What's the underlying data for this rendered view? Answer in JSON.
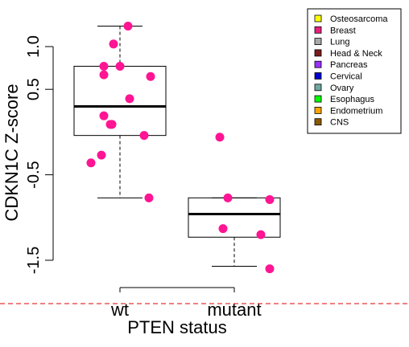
{
  "chart_data": {
    "type": "box",
    "xlabel": "PTEN status",
    "ylabel": "CDKN1C Z-score",
    "ylim": [
      -1.55,
      1.15
    ],
    "yticks": [
      -1.5,
      -0.5,
      0.5,
      1.0
    ],
    "ytick_labels": [
      "-1.5",
      "-0.5",
      "0.5",
      "1.0"
    ],
    "categories": [
      "wt",
      "mutant"
    ],
    "groups": [
      {
        "category": "wt",
        "whisker_low": -0.77,
        "q1": -0.04,
        "median": 0.3,
        "q3": 0.77,
        "whisker_high": 1.24,
        "points": [
          1.24,
          1.03,
          0.77,
          0.77,
          0.67,
          0.65,
          0.39,
          0.19,
          0.09,
          0.09,
          -0.04,
          -0.27,
          -0.36,
          -0.77
        ]
      },
      {
        "category": "mutant",
        "whisker_low": -1.57,
        "q1": -1.23,
        "median": -0.96,
        "q3": -0.77,
        "whisker_high": -0.77,
        "points": [
          -0.06,
          -0.77,
          -0.79,
          -1.13,
          -1.2,
          -1.6
        ]
      }
    ],
    "point_color": "#FF1493",
    "legend": {
      "position": "top-right",
      "entries": [
        {
          "label": "Osteosarcoma",
          "color": "#FFFF00"
        },
        {
          "label": "Breast",
          "color": "#E8207F"
        },
        {
          "label": "Lung",
          "color": "#A9A9A9"
        },
        {
          "label": "Head & Neck",
          "color": "#7B1C1C"
        },
        {
          "label": "Pancreas",
          "color": "#9B30FF"
        },
        {
          "label": "Cervical",
          "color": "#0000CD"
        },
        {
          "label": "Ovary",
          "color": "#6FA8A0"
        },
        {
          "label": "Esophagus",
          "color": "#00FF00"
        },
        {
          "label": "Endometrium",
          "color": "#FFA500"
        },
        {
          "label": "CNS",
          "color": "#8B5A00"
        }
      ]
    },
    "reference_line": {
      "color": "#E00000",
      "style": "dashed"
    }
  }
}
